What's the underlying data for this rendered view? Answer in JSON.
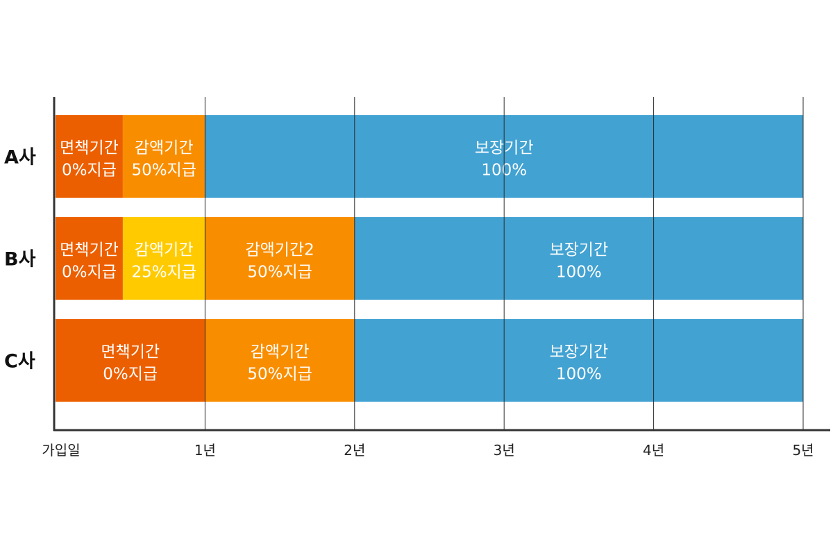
{
  "chart_data": {
    "type": "bar",
    "orientation": "horizontal",
    "stacked": true,
    "title": "",
    "xlabel": "",
    "ylabel": "",
    "xlim": [
      0,
      5
    ],
    "x_ticks": [
      {
        "value": 0,
        "label": "가입일"
      },
      {
        "value": 1,
        "label": "1년"
      },
      {
        "value": 2,
        "label": "2년"
      },
      {
        "value": 3,
        "label": "3년"
      },
      {
        "value": 4,
        "label": "4년"
      },
      {
        "value": 5,
        "label": "5년"
      }
    ],
    "grid": true,
    "categories": [
      "A사",
      "B사",
      "C사"
    ],
    "colors": {
      "exemption": "#EC5F00",
      "reduction25": "#FFCB00",
      "reduction50": "#F98D00",
      "coverage": "#42A2D2"
    },
    "rows": [
      {
        "name": "A사",
        "segments": [
          {
            "start": 0,
            "end": 0.45,
            "line1": "면책기간",
            "line2": "0%지급",
            "color": "#EC5F00"
          },
          {
            "start": 0.45,
            "end": 1,
            "line1": "감액기간",
            "line2": "50%지급",
            "color": "#F98D00"
          },
          {
            "start": 1,
            "end": 5,
            "line1": "보장기간",
            "line2": "100%",
            "color": "#42A2D2"
          }
        ]
      },
      {
        "name": "B사",
        "segments": [
          {
            "start": 0,
            "end": 0.45,
            "line1": "면책기간",
            "line2": "0%지급",
            "color": "#EC5F00"
          },
          {
            "start": 0.45,
            "end": 1,
            "line1": "감액기간",
            "line2": "25%지급",
            "color": "#FFCB00"
          },
          {
            "start": 1,
            "end": 2,
            "line1": "감액기간2",
            "line2": "50%지급",
            "color": "#F98D00"
          },
          {
            "start": 2,
            "end": 5,
            "line1": "보장기간",
            "line2": "100%",
            "color": "#42A2D2"
          }
        ]
      },
      {
        "name": "C사",
        "segments": [
          {
            "start": 0,
            "end": 1,
            "line1": "면책기간",
            "line2": "0%지급",
            "color": "#EC5F00"
          },
          {
            "start": 1,
            "end": 2,
            "line1": "감액기간",
            "line2": "50%지급",
            "color": "#F98D00"
          },
          {
            "start": 2,
            "end": 5,
            "line1": "보장기간",
            "line2": "100%",
            "color": "#42A2D2"
          }
        ]
      }
    ]
  }
}
